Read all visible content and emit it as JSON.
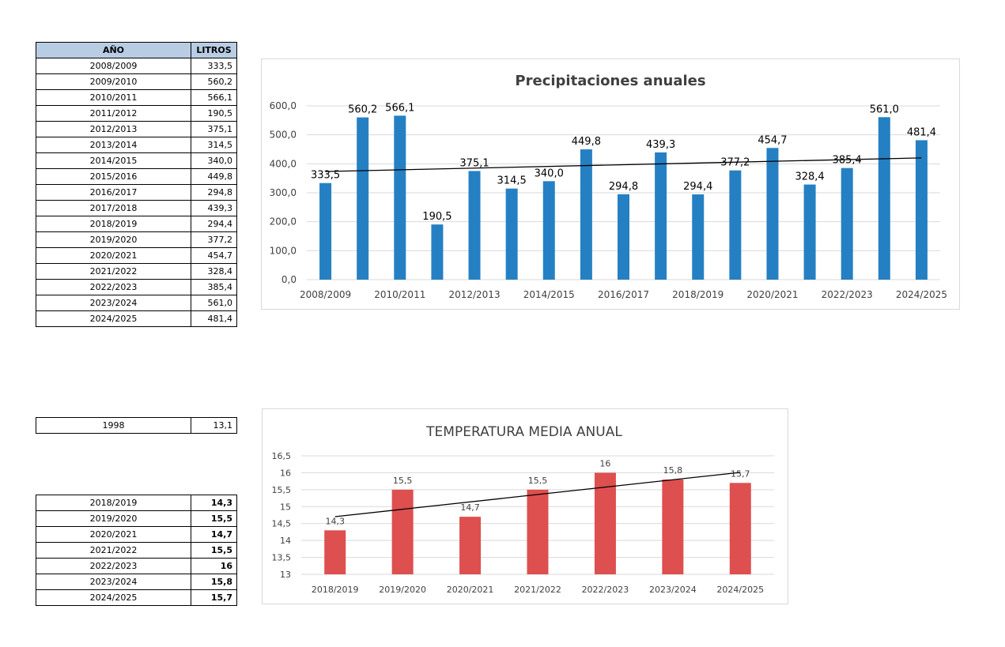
{
  "precip_table": {
    "headers": [
      "AÑO",
      "LITROS"
    ],
    "rows": [
      [
        "2008/2009",
        "333,5"
      ],
      [
        "2009/2010",
        "560,2"
      ],
      [
        "2010/2011",
        "566,1"
      ],
      [
        "2011/2012",
        "190,5"
      ],
      [
        "2012/2013",
        "375,1"
      ],
      [
        "2013/2014",
        "314,5"
      ],
      [
        "2014/2015",
        "340,0"
      ],
      [
        "2015/2016",
        "449,8"
      ],
      [
        "2016/2017",
        "294,8"
      ],
      [
        "2017/2018",
        "439,3"
      ],
      [
        "2018/2019",
        "294,4"
      ],
      [
        "2019/2020",
        "377,2"
      ],
      [
        "2020/2021",
        "454,7"
      ],
      [
        "2021/2022",
        "328,4"
      ],
      [
        "2022/2023",
        "385,4"
      ],
      [
        "2023/2024",
        "561,0"
      ],
      [
        "2024/2025",
        "481,4"
      ]
    ]
  },
  "ref_table": {
    "rows": [
      [
        "1998",
        "13,1"
      ]
    ]
  },
  "temp_table": {
    "rows": [
      [
        "2018/2019",
        "14,3"
      ],
      [
        "2019/2020",
        "15,5"
      ],
      [
        "2020/2021",
        "14,7"
      ],
      [
        "2021/2022",
        "15,5"
      ],
      [
        "2022/2023",
        "16"
      ],
      [
        "2023/2024",
        "15,8"
      ],
      [
        "2024/2025",
        "15,7"
      ]
    ]
  },
  "chart_data": [
    {
      "type": "bar",
      "title": "Precipitaciones anuales",
      "xlabel": "",
      "ylabel": "",
      "color": "#2580c3",
      "trendline": {
        "type": "linear",
        "color": "#000000"
      },
      "ylim": [
        0,
        600
      ],
      "yticks": [
        0,
        100,
        200,
        300,
        400,
        500,
        600
      ],
      "ytick_labels": [
        "0,0",
        "100,0",
        "200,0",
        "300,0",
        "400,0",
        "500,0",
        "600,0"
      ],
      "grid": true,
      "categories": [
        "2008/2009",
        "2009/2010",
        "2010/2011",
        "2011/2012",
        "2012/2013",
        "2013/2014",
        "2014/2015",
        "2015/2016",
        "2016/2017",
        "2017/2018",
        "2018/2019",
        "2019/2020",
        "2020/2021",
        "2021/2022",
        "2022/2023",
        "2023/2024",
        "2024/2025"
      ],
      "xtick_labels_shown": [
        "2008/2009",
        "",
        "2010/2011",
        "",
        "2012/2013",
        "",
        "2014/2015",
        "",
        "2016/2017",
        "",
        "2018/2019",
        "",
        "2020/2021",
        "",
        "2022/2023",
        "",
        "2024/2025"
      ],
      "values": [
        333.5,
        560.2,
        566.1,
        190.5,
        375.1,
        314.5,
        340.0,
        449.8,
        294.8,
        439.3,
        294.4,
        377.2,
        454.7,
        328.4,
        385.4,
        561.0,
        481.4
      ],
      "data_labels": [
        "333,5",
        "560,2",
        "566,1",
        "190,5",
        "375,1",
        "314,5",
        "340,0",
        "449,8",
        "294,8",
        "439,3",
        "294,4",
        "377,2",
        "454,7",
        "328,4",
        "385,4",
        "561,0",
        "481,4"
      ]
    },
    {
      "type": "bar",
      "title": "TEMPERATURA MEDIA ANUAL",
      "xlabel": "",
      "ylabel": "",
      "color": "#de4f4f",
      "trendline": {
        "type": "linear",
        "color": "#000000"
      },
      "ylim": [
        13,
        16.5
      ],
      "yticks": [
        13,
        13.5,
        14,
        14.5,
        15,
        15.5,
        16,
        16.5
      ],
      "ytick_labels": [
        "13",
        "13,5",
        "14",
        "14,5",
        "15",
        "15,5",
        "16",
        "16,5"
      ],
      "grid": true,
      "categories": [
        "2018/2019",
        "2019/2020",
        "2020/2021",
        "2021/2022",
        "2022/2023",
        "2023/2024",
        "2024/2025"
      ],
      "values": [
        14.3,
        15.5,
        14.7,
        15.5,
        16,
        15.8,
        15.7
      ],
      "data_labels": [
        "14,3",
        "15,5",
        "14,7",
        "15,5",
        "16",
        "15,8",
        "15,7"
      ]
    }
  ]
}
